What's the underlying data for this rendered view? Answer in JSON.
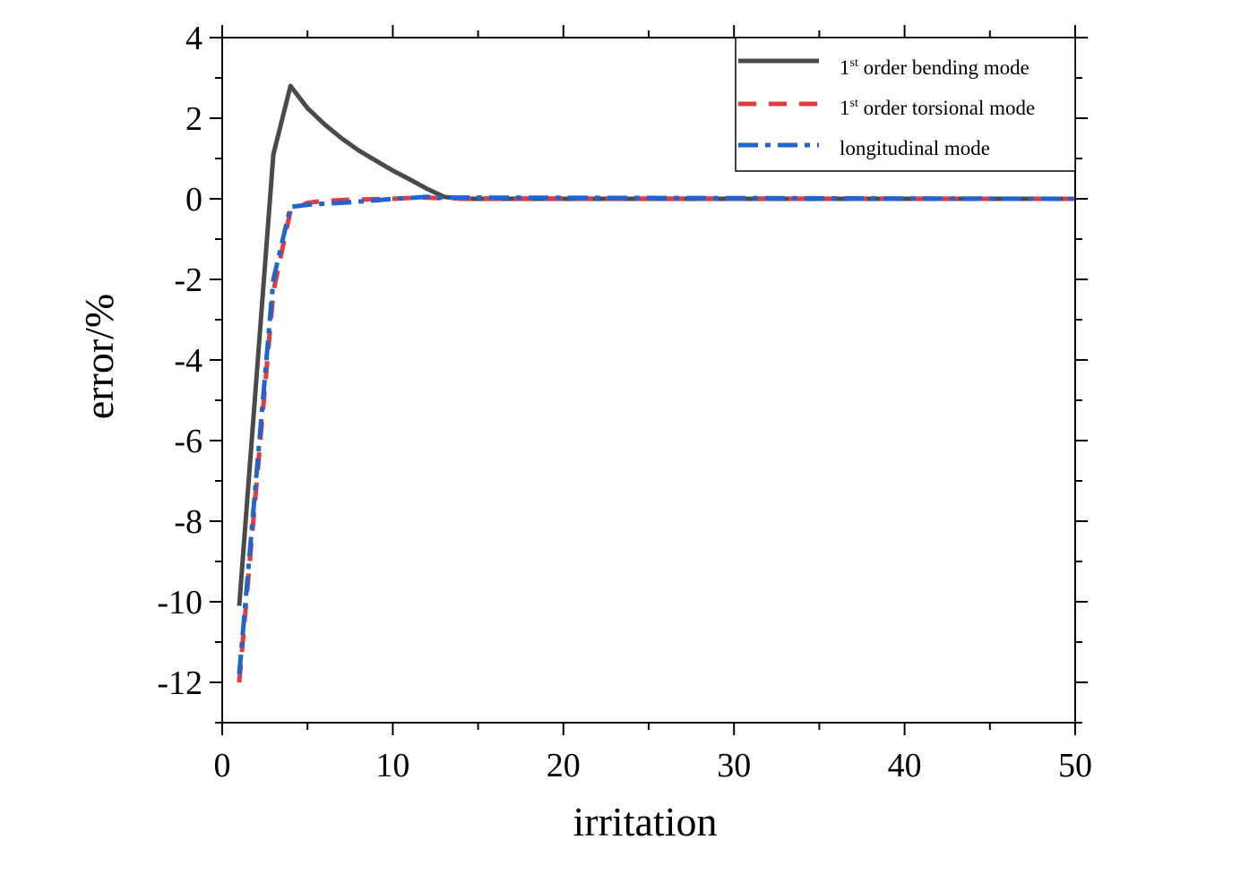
{
  "chart_data": {
    "type": "line",
    "xlabel": "irritation",
    "ylabel": "error/%",
    "xlim": [
      0,
      50
    ],
    "ylim": [
      -13,
      4
    ],
    "x_ticks": [
      0,
      10,
      20,
      30,
      40,
      50
    ],
    "y_ticks": [
      4,
      2,
      0,
      -2,
      -4,
      -6,
      -8,
      -10,
      -12
    ],
    "x_tick_labels": [
      "0",
      "10",
      "20",
      "30",
      "40",
      "50"
    ],
    "y_tick_labels": [
      "4",
      "2",
      "0",
      "-2",
      "-4",
      "-6",
      "-8",
      "-10",
      "-12"
    ],
    "grid": false,
    "legend_position": "top-right",
    "series": [
      {
        "name_main": "1",
        "name_sup": "st",
        "name_rest": " order bending mode",
        "color": "#4a4a4a",
        "style": "solid",
        "x": [
          1,
          3,
          4,
          5,
          6,
          7,
          8,
          9,
          10,
          11,
          12,
          13,
          14,
          50
        ],
        "y": [
          -10.1,
          1.1,
          2.8,
          2.25,
          1.85,
          1.5,
          1.2,
          0.95,
          0.7,
          0.48,
          0.25,
          0.05,
          0,
          0
        ]
      },
      {
        "name_main": "1",
        "name_sup": "st",
        "name_rest": " order torsional mode",
        "color": "#e8393c",
        "style": "dashed",
        "x": [
          1,
          3,
          4,
          5,
          6,
          7,
          8,
          9,
          10,
          11,
          12,
          13,
          50
        ],
        "y": [
          -12,
          -2.3,
          -0.3,
          -0.1,
          -0.05,
          -0.03,
          -0.02,
          -0.01,
          0,
          0.02,
          0.03,
          0.01,
          0
        ]
      },
      {
        "name": "longitudinal mode",
        "color": "#1e64d2",
        "style": "dashdot",
        "x": [
          1,
          3,
          4,
          5,
          6,
          7,
          8,
          9,
          10,
          11,
          12,
          13,
          50
        ],
        "y": [
          -11.8,
          -2.0,
          -0.2,
          -0.15,
          -0.12,
          -0.1,
          -0.07,
          -0.04,
          0,
          0.02,
          0.05,
          0.03,
          0
        ]
      }
    ]
  }
}
